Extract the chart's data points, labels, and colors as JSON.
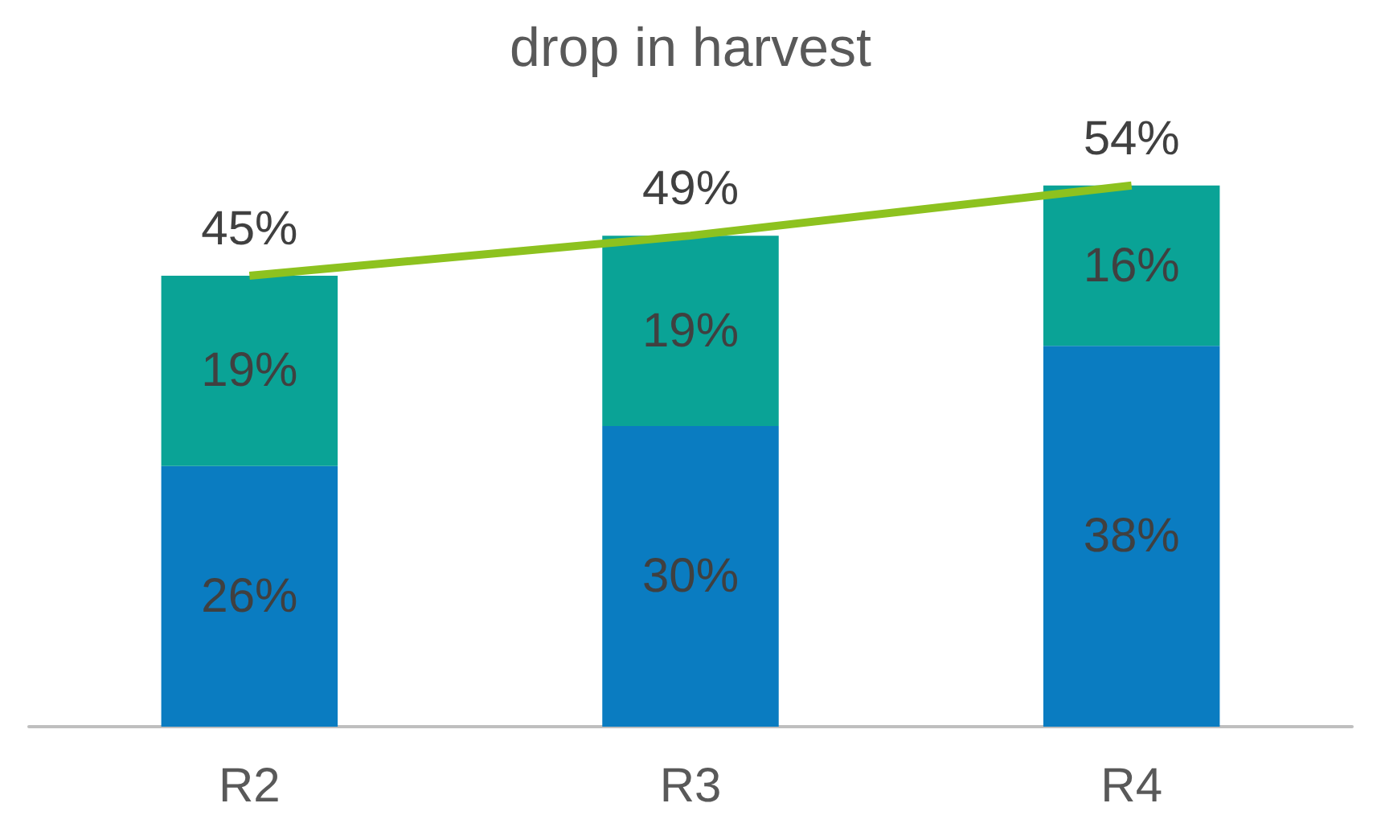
{
  "chart_data": {
    "type": "bar",
    "title": "drop in harvest",
    "categories": [
      "R2",
      "R3",
      "R4"
    ],
    "stacked": true,
    "grid": false,
    "series": [
      {
        "color": "#0a7cc1",
        "values": [
          26,
          30,
          38
        ],
        "value_labels": [
          "26%",
          "30%",
          "38%"
        ]
      },
      {
        "color": "#0aa396",
        "values": [
          19,
          19,
          16
        ],
        "value_labels": [
          "19%",
          "19%",
          "16%"
        ]
      },
      {
        "type": "line",
        "color": "#8dc21f",
        "values": [
          45,
          49,
          54
        ],
        "value_labels": [
          "45%",
          "49%",
          "54%"
        ],
        "marker": "none"
      }
    ]
  }
}
